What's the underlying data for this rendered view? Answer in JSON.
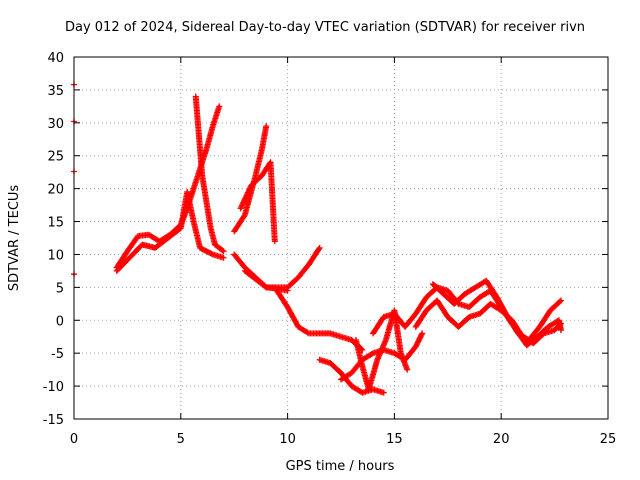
{
  "chart_data": {
    "type": "scatter",
    "title": "Day 012 of 2024, Sidereal Day-to-day VTEC variation (SDTVAR) for receiver rivn",
    "xlabel": "GPS time / hours",
    "ylabel": "SDTVAR / TECUs",
    "xlim": [
      0,
      25
    ],
    "ylim": [
      -15,
      40
    ],
    "xticks": [
      0,
      5,
      10,
      15,
      20,
      25
    ],
    "yticks": [
      -15,
      -10,
      -5,
      0,
      5,
      10,
      15,
      20,
      25,
      30,
      35,
      40
    ],
    "grid": true,
    "marker": "plus",
    "color": "#ff0000",
    "series": [
      {
        "name": "isolated-points-t0",
        "points": [
          [
            0.0,
            35.8
          ],
          [
            0.0,
            30.2
          ],
          [
            0.0,
            22.6
          ],
          [
            0.0,
            7.0
          ]
        ]
      },
      {
        "name": "track-early-a",
        "points": [
          [
            2.0,
            8.0
          ],
          [
            2.5,
            10.5
          ],
          [
            3.0,
            12.8
          ],
          [
            3.5,
            13.0
          ],
          [
            4.0,
            12.0
          ],
          [
            4.5,
            13.0
          ],
          [
            5.0,
            14.5
          ],
          [
            5.3,
            17.0
          ],
          [
            5.6,
            20.0
          ],
          [
            5.9,
            23.0
          ],
          [
            6.2,
            26.0
          ],
          [
            6.5,
            29.5
          ],
          [
            6.8,
            32.5
          ]
        ]
      },
      {
        "name": "track-early-b",
        "points": [
          [
            2.0,
            7.5
          ],
          [
            2.6,
            9.5
          ],
          [
            3.2,
            11.5
          ],
          [
            3.8,
            11.0
          ],
          [
            4.4,
            12.5
          ],
          [
            5.0,
            14.0
          ],
          [
            5.3,
            19.5
          ],
          [
            5.6,
            15.0
          ],
          [
            5.9,
            11.0
          ],
          [
            6.5,
            10.0
          ],
          [
            7.0,
            9.5
          ]
        ]
      },
      {
        "name": "track-spike",
        "points": [
          [
            5.7,
            34.0
          ],
          [
            5.8,
            30.0
          ],
          [
            5.9,
            26.0
          ],
          [
            6.0,
            22.0
          ],
          [
            6.2,
            18.0
          ],
          [
            6.4,
            14.0
          ],
          [
            6.6,
            11.5
          ],
          [
            7.0,
            10.5
          ]
        ]
      },
      {
        "name": "track-mid-a",
        "points": [
          [
            7.5,
            13.5
          ],
          [
            8.0,
            16.0
          ],
          [
            8.5,
            22.0
          ],
          [
            8.8,
            26.0
          ],
          [
            9.0,
            29.5
          ]
        ]
      },
      {
        "name": "track-mid-b",
        "points": [
          [
            7.5,
            10.0
          ],
          [
            8.0,
            8.0
          ],
          [
            8.5,
            6.5
          ],
          [
            9.0,
            5.0
          ],
          [
            9.5,
            4.8
          ],
          [
            10.0,
            4.5
          ]
        ]
      },
      {
        "name": "track-mid-c",
        "points": [
          [
            7.8,
            17.0
          ],
          [
            8.3,
            20.5
          ],
          [
            8.8,
            22.0
          ],
          [
            9.2,
            24.0
          ],
          [
            9.4,
            12.0
          ]
        ]
      },
      {
        "name": "track-drop",
        "points": [
          [
            8.0,
            7.5
          ],
          [
            9.0,
            5.0
          ],
          [
            10.0,
            5.0
          ],
          [
            10.5,
            6.5
          ],
          [
            11.0,
            8.5
          ],
          [
            11.5,
            11.0
          ]
        ]
      },
      {
        "name": "track-descend",
        "points": [
          [
            9.5,
            4.5
          ],
          [
            10.0,
            2.0
          ],
          [
            10.5,
            -1.0
          ],
          [
            11.0,
            -2.0
          ],
          [
            12.0,
            -2.0
          ],
          [
            13.0,
            -3.0
          ],
          [
            13.5,
            -4.5
          ]
        ]
      },
      {
        "name": "track-low",
        "points": [
          [
            11.5,
            -6.0
          ],
          [
            12.0,
            -6.5
          ],
          [
            12.5,
            -8.0
          ],
          [
            13.0,
            -10.0
          ],
          [
            13.5,
            -11.0
          ],
          [
            14.0,
            -10.5
          ],
          [
            14.5,
            -11.0
          ]
        ]
      },
      {
        "name": "track-cluster-a",
        "points": [
          [
            12.5,
            -9.0
          ],
          [
            13.0,
            -8.0
          ],
          [
            13.5,
            -6.0
          ],
          [
            14.0,
            -5.0
          ],
          [
            14.5,
            -4.5
          ],
          [
            15.0,
            -5.0
          ],
          [
            15.5,
            -6.0
          ],
          [
            16.0,
            -4.0
          ],
          [
            16.3,
            -2.0
          ]
        ]
      },
      {
        "name": "track-cluster-b",
        "points": [
          [
            13.2,
            -3.0
          ],
          [
            13.5,
            -7.0
          ],
          [
            13.8,
            -10.5
          ],
          [
            14.2,
            -6.0
          ],
          [
            14.6,
            -3.0
          ],
          [
            15.0,
            1.5
          ],
          [
            15.3,
            -5.0
          ],
          [
            15.6,
            -7.5
          ]
        ]
      },
      {
        "name": "track-rise",
        "points": [
          [
            14.0,
            -2.0
          ],
          [
            14.5,
            0.5
          ],
          [
            15.0,
            1.0
          ],
          [
            15.5,
            -1.0
          ],
          [
            16.0,
            1.0
          ],
          [
            16.5,
            3.5
          ],
          [
            17.0,
            5.0
          ],
          [
            17.5,
            4.5
          ],
          [
            18.0,
            2.5
          ],
          [
            18.5,
            2.0
          ],
          [
            19.0,
            3.5
          ],
          [
            19.5,
            4.5
          ],
          [
            20.0,
            2.0
          ],
          [
            20.5,
            -0.5
          ]
        ]
      },
      {
        "name": "track-late-a",
        "points": [
          [
            16.0,
            -1.0
          ],
          [
            16.5,
            1.5
          ],
          [
            17.0,
            3.0
          ],
          [
            17.5,
            0.5
          ],
          [
            18.0,
            -1.0
          ],
          [
            18.5,
            0.5
          ],
          [
            19.0,
            1.0
          ],
          [
            19.5,
            2.5
          ],
          [
            20.0,
            1.5
          ],
          [
            20.5,
            0.0
          ],
          [
            21.0,
            -2.5
          ],
          [
            21.5,
            -3.5
          ],
          [
            22.0,
            -2.0
          ],
          [
            22.5,
            -1.5
          ],
          [
            22.8,
            -0.5
          ]
        ]
      },
      {
        "name": "track-late-b",
        "points": [
          [
            16.8,
            5.5
          ],
          [
            17.3,
            4.0
          ],
          [
            17.8,
            2.5
          ],
          [
            18.3,
            4.0
          ],
          [
            18.8,
            5.0
          ],
          [
            19.3,
            6.0
          ],
          [
            19.8,
            3.5
          ],
          [
            20.3,
            0.5
          ],
          [
            20.8,
            -2.0
          ],
          [
            21.3,
            -3.0
          ],
          [
            21.8,
            -1.0
          ],
          [
            22.3,
            1.5
          ],
          [
            22.8,
            3.0
          ]
        ]
      },
      {
        "name": "track-late-c",
        "points": [
          [
            20.7,
            -1.5
          ],
          [
            21.2,
            -3.8
          ],
          [
            21.7,
            -2.5
          ],
          [
            22.2,
            -1.0
          ],
          [
            22.7,
            0.0
          ],
          [
            22.8,
            -1.5
          ]
        ]
      }
    ]
  }
}
